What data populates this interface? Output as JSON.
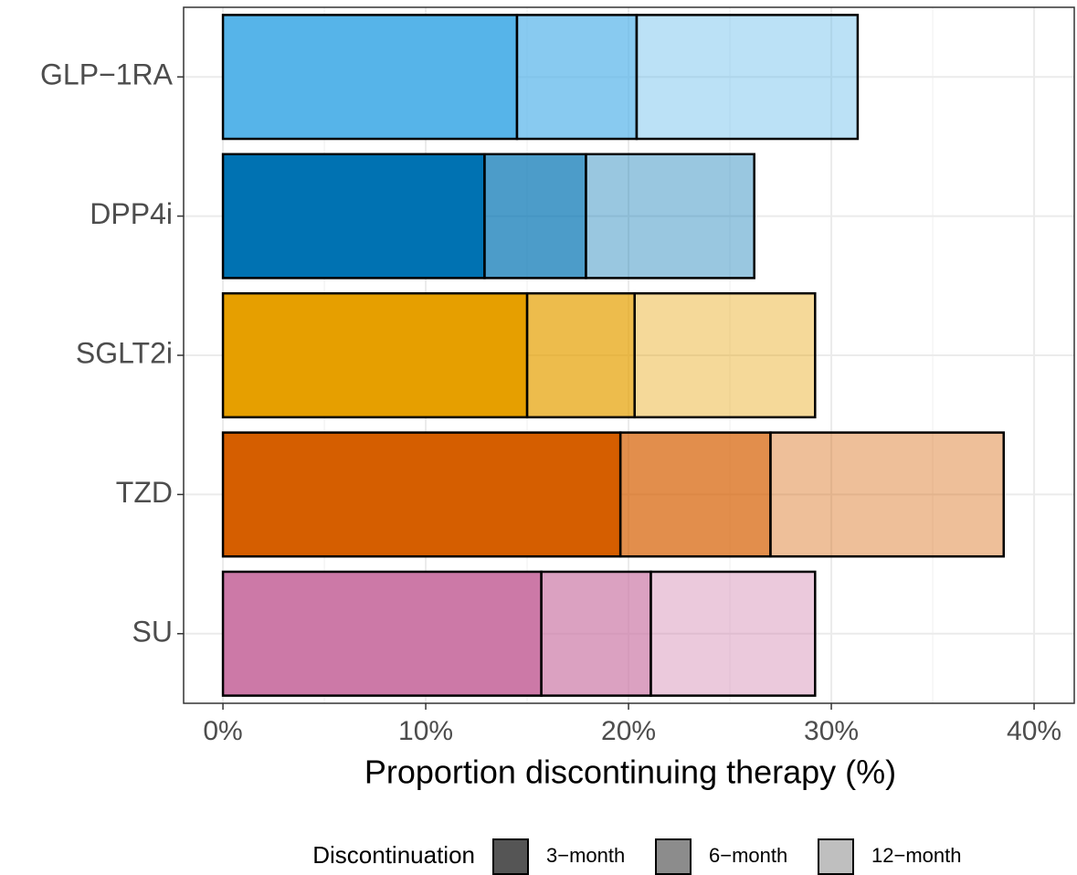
{
  "chart_data": {
    "type": "bar",
    "orientation": "horizontal",
    "stacked": true,
    "x_label": "Proportion discontinuing therapy (%)",
    "categories": [
      "GLP−1RA",
      "DPP4i",
      "SGLT2i",
      "TZD",
      "SU"
    ],
    "category_colors": [
      "#56B4E9",
      "#0072B2",
      "#E69F00",
      "#D55E00",
      "#CC79A7"
    ],
    "series": [
      {
        "name": "3−month",
        "color": "#555555",
        "opacity": 1,
        "values": [
          14.5,
          12.9,
          15.0,
          19.6,
          15.7
        ]
      },
      {
        "name": "6−month",
        "color": "#8c8c8c",
        "opacity": 0.7,
        "values": [
          5.9,
          5.0,
          5.3,
          7.4,
          5.4
        ]
      },
      {
        "name": "12−month",
        "color": "#bfbfbf",
        "opacity": 0.4,
        "values": [
          10.9,
          8.3,
          8.9,
          11.5,
          8.1
        ]
      }
    ],
    "legend_title": "Discontinuation",
    "legend_position": "bottom",
    "xlim": [
      -1.94,
      41.98
    ],
    "xticks": [
      {
        "value": 0,
        "label": "0%"
      },
      {
        "value": 10,
        "label": "10%"
      },
      {
        "value": 20,
        "label": "20%"
      },
      {
        "value": 30,
        "label": "30%"
      },
      {
        "value": 40,
        "label": "40%"
      }
    ],
    "x_minor_ticks": [
      5,
      15,
      25,
      35
    ],
    "grid": true
  }
}
